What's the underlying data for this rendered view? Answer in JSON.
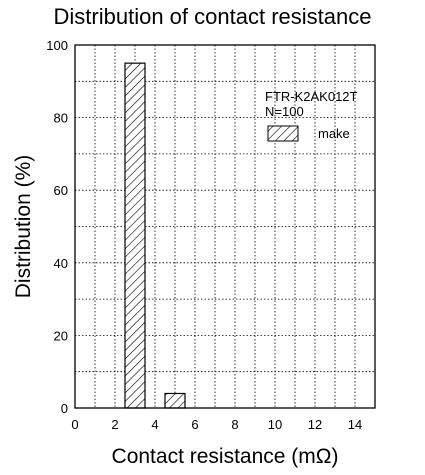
{
  "chart_data": {
    "type": "bar",
    "title": "Distribution of contact resistance",
    "xlabel": "Contact resistance (mΩ)",
    "ylabel": "Distribution (%)",
    "xlim": [
      0,
      15
    ],
    "ylim": [
      0,
      100
    ],
    "x_ticks": [
      "0",
      "2",
      "4",
      "6",
      "8",
      "10",
      "12",
      "14"
    ],
    "y_ticks": [
      "0",
      "20",
      "40",
      "60",
      "80",
      "100"
    ],
    "grid": true,
    "annotations": [
      "FTR-K2AK012T",
      "N=100"
    ],
    "bins": [
      {
        "x_start": 2.5,
        "x_end": 3.5,
        "value": 95
      },
      {
        "x_start": 4.5,
        "x_end": 5.5,
        "value": 4
      }
    ],
    "series": [
      {
        "name": "make",
        "pattern": "diagonal-hatch"
      }
    ],
    "legend_position": "top-right",
    "colors": {
      "bar_fill": "#ffffff",
      "bar_stroke": "#000000",
      "grid": "#000000"
    }
  }
}
